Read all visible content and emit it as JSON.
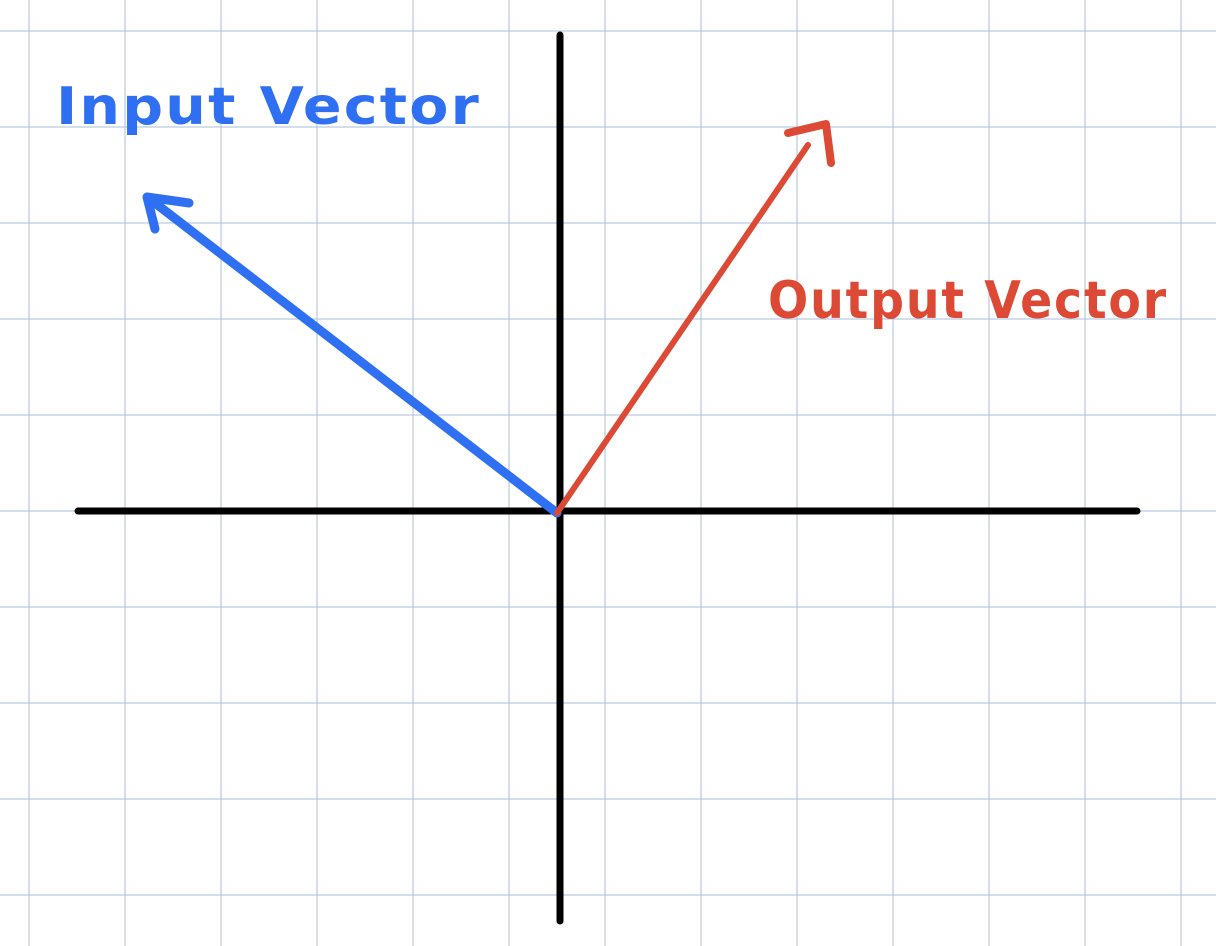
{
  "labels": {
    "input": "Input Vector",
    "output": "Output Vector"
  },
  "colors": {
    "grid": "#aabfdd",
    "axes": "#000000",
    "input_vector": "#2f6ff2",
    "output_vector": "#dc4a35",
    "background": "#ffffff"
  },
  "vectors": {
    "input": {
      "x": -4.2,
      "y": 3.3
    },
    "output": {
      "x": 2.6,
      "y": 3.8
    }
  }
}
